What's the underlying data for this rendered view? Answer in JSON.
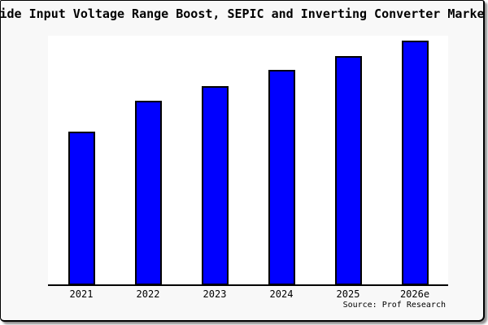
{
  "figure": {
    "background": "#f8f8f8",
    "plot_background": "#ffffff",
    "frame_border_color": "#000000"
  },
  "chart_data": {
    "type": "bar",
    "title": "Wide Input Voltage Range Boost, SEPIC and Inverting Converter Market",
    "categories": [
      "2021",
      "2022",
      "2023",
      "2024",
      "2025",
      "2026e"
    ],
    "values": [
      61.6,
      73.9,
      79.8,
      86.3,
      91.9,
      98.0
    ],
    "values_note": "relative bar heights as percent of plot height; chart shows no y-axis scale or data labels",
    "xlabel": "",
    "ylabel": "",
    "ylim": [
      0,
      100
    ],
    "grid": false,
    "legend": false,
    "bar_color": "#0000ff",
    "bar_border_color": "#000000",
    "source": "Source: Prof Research"
  }
}
